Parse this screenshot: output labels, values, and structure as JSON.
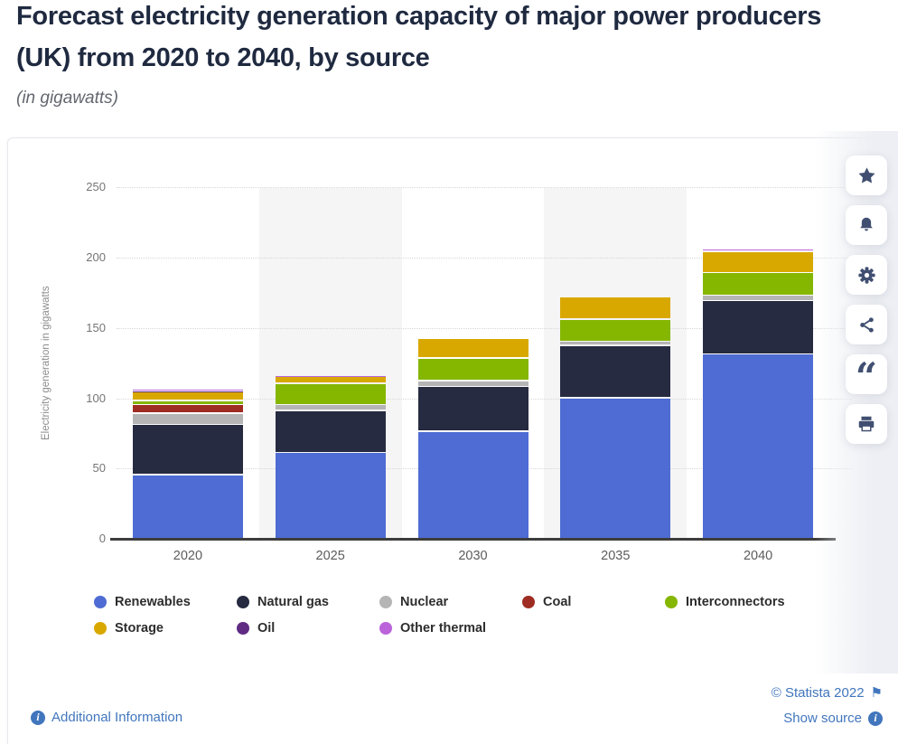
{
  "page": {
    "title_line1": "Forecast electricity generation capacity of major power producers",
    "title_line2": "(UK) from 2020 to 2040, by source",
    "subtitle": "(in gigawatts)"
  },
  "chart_data": {
    "type": "bar",
    "stacked": true,
    "title": "Forecast electricity generation capacity of major power producers (UK) from 2020 to 2040, by source",
    "subtitle": "(in gigawatts)",
    "xlabel": "",
    "ylabel": "Electricity generation in gigawatts",
    "ylim": [
      0,
      250
    ],
    "ytick_step": 50,
    "yticks": [
      0,
      50,
      100,
      150,
      200,
      250
    ],
    "grid": "horizontal-dotted",
    "background_stripes_on_categories": [
      "2025",
      "2035"
    ],
    "legend_position": "bottom",
    "categories": [
      "2020",
      "2025",
      "2030",
      "2035",
      "2040"
    ],
    "series": [
      {
        "name": "Renewables",
        "color": "#4e6cd3",
        "values": [
          46,
          62,
          77,
          101,
          132
        ]
      },
      {
        "name": "Natural gas",
        "color": "#262b41",
        "values": [
          36,
          30,
          32,
          37,
          38
        ]
      },
      {
        "name": "Nuclear",
        "color": "#b5b5b5",
        "values": [
          8,
          4,
          4,
          3,
          4
        ]
      },
      {
        "name": "Coal",
        "color": "#9e2c23",
        "values": [
          6,
          0,
          0,
          0,
          0
        ]
      },
      {
        "name": "Interconnectors",
        "color": "#85b600",
        "values": [
          3,
          15,
          16,
          16,
          16
        ]
      },
      {
        "name": "Storage",
        "color": "#d9a800",
        "values": [
          6,
          5,
          14,
          16,
          15
        ]
      },
      {
        "name": "Oil",
        "color": "#5f2b83",
        "values": [
          1,
          0,
          0,
          0,
          0
        ]
      },
      {
        "name": "Other thermal",
        "color": "#bb63da",
        "values": [
          1,
          1,
          0,
          0,
          2
        ]
      }
    ],
    "totals": [
      107,
      117,
      143,
      173,
      207
    ]
  },
  "sidebar": {
    "buttons": [
      "star",
      "bell",
      "gear",
      "share",
      "quote",
      "print"
    ]
  },
  "footer": {
    "additional_info": "Additional Information",
    "copyright": "© Statista 2022",
    "show_source": "Show source",
    "link_color": "#4176bd"
  }
}
